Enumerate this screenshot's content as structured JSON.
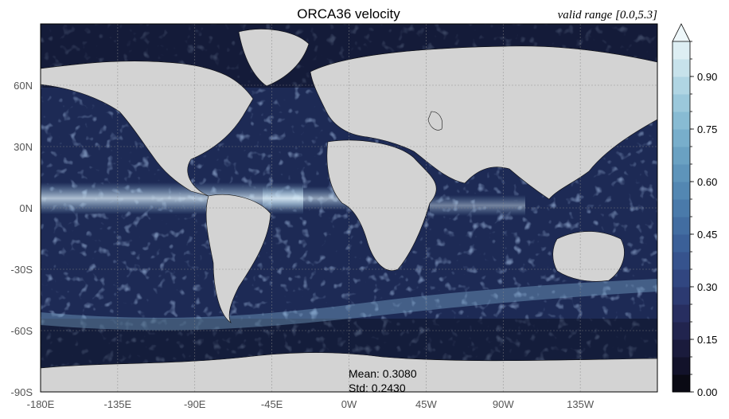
{
  "chart_data": {
    "type": "heatmap",
    "title": "ORCA36 velocity",
    "subtitle": "valid range [0.0,5.3]",
    "projection": "equirectangular",
    "xlim": [
      -180,
      180
    ],
    "ylim": [
      -90,
      90
    ],
    "grid": true,
    "x_ticks": [
      {
        "value": -180,
        "label": "-180E"
      },
      {
        "value": -135,
        "label": "-135E"
      },
      {
        "value": -90,
        "label": "-90E"
      },
      {
        "value": -45,
        "label": "-45E"
      },
      {
        "value": 0,
        "label": "0W"
      },
      {
        "value": 45,
        "label": "45W"
      },
      {
        "value": 90,
        "label": "90W"
      },
      {
        "value": 135,
        "label": "135W"
      }
    ],
    "y_ticks": [
      {
        "value": 60,
        "label": "60N"
      },
      {
        "value": 30,
        "label": "30N"
      },
      {
        "value": 0,
        "label": "0N"
      },
      {
        "value": -30,
        "label": "-30S"
      },
      {
        "value": -60,
        "label": "-60S"
      },
      {
        "value": -90,
        "label": "-90S"
      }
    ],
    "colorbar": {
      "min": 0.0,
      "max": 1.0,
      "levels": 20,
      "extend": "max",
      "tick_labels": [
        "0.00",
        "0.15",
        "0.30",
        "0.45",
        "0.60",
        "0.75",
        "0.90"
      ],
      "tick_values": [
        0.0,
        0.15,
        0.3,
        0.45,
        0.6,
        0.75,
        0.9
      ],
      "colors": [
        "#0a0a14",
        "#12122a",
        "#1a1b3c",
        "#21244e",
        "#272e60",
        "#2c3a71",
        "#314680",
        "#36538d",
        "#3b6098",
        "#426da1",
        "#4a7aaa",
        "#5387b2",
        "#5e94ba",
        "#6aa1c2",
        "#78aecb",
        "#88bbd3",
        "#9bc8db",
        "#b0d5e3",
        "#c7e2eb",
        "#ddeef3"
      ],
      "extend_color": "#eef7fa"
    },
    "land_color": "#d3d3d3",
    "stats": {
      "mean_label": "Mean: 0.3080",
      "std_label": "Std: 0.2430"
    }
  }
}
